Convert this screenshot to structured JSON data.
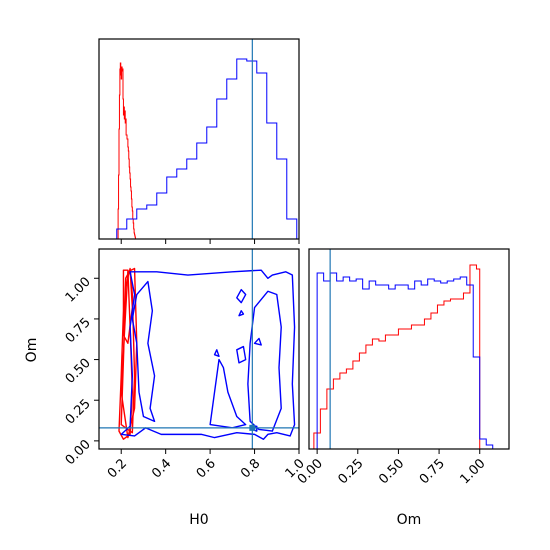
{
  "chart_data": {
    "type": "corner",
    "params": [
      "H0",
      "Om"
    ],
    "truths": {
      "H0": 0.79,
      "Om": 0.08
    },
    "truth_color": "#1f77b4",
    "series_colors": {
      "red": "#ff0000",
      "blue": "#0000ff"
    },
    "axes": {
      "H0": {
        "label": "H0",
        "lim": [
          0.1,
          1.0
        ],
        "ticks": [
          "0.2",
          "0.4",
          "0.6",
          "0.8",
          "1.0"
        ],
        "tick_values": [
          0.2,
          0.4,
          0.6,
          0.8,
          1.0
        ]
      },
      "Om": {
        "label": "Om",
        "lim": [
          -0.05,
          1.18
        ],
        "ticks": [
          "0.00",
          "0.25",
          "0.50",
          "0.75",
          "1.00"
        ],
        "tick_values": [
          0.0,
          0.25,
          0.5,
          0.75,
          1.0
        ]
      }
    },
    "hist_H0": {
      "ylim": [
        0,
        1
      ],
      "red_edges": [
        0.18,
        0.182,
        0.184,
        0.186,
        0.188,
        0.19,
        0.192,
        0.194,
        0.196,
        0.198,
        0.2,
        0.202,
        0.204,
        0.206,
        0.208,
        0.21,
        0.212,
        0.214,
        0.216,
        0.218,
        0.22,
        0.222,
        0.224,
        0.226,
        0.228,
        0.23,
        0.232,
        0.234,
        0.236,
        0.238,
        0.24,
        0.242,
        0.244,
        0.246,
        0.248,
        0.25,
        0.252,
        0.254,
        0.256,
        0.258,
        0.26,
        0.262,
        0.264,
        0.266,
        0.268,
        0.27
      ],
      "red_heights": [
        0,
        0,
        0,
        0.15,
        0.32,
        0.55,
        0.72,
        0.85,
        0.88,
        0.82,
        0.8,
        0.86,
        0.84,
        0.85,
        0.7,
        0.62,
        0.66,
        0.6,
        0.64,
        0.58,
        0.6,
        0.52,
        0.52,
        0.5,
        0.5,
        0.46,
        0.44,
        0.4,
        0.36,
        0.33,
        0.3,
        0.26,
        0.24,
        0.2,
        0.16,
        0.14,
        0.1,
        0.08,
        0.05,
        0.03,
        0.02,
        0.01,
        0,
        0,
        0
      ],
      "blue_edges": [
        0.18,
        0.225,
        0.27,
        0.315,
        0.36,
        0.405,
        0.45,
        0.495,
        0.54,
        0.585,
        0.63,
        0.675,
        0.72,
        0.765,
        0.81,
        0.855,
        0.9,
        0.945,
        0.99
      ],
      "blue_heights": [
        0.05,
        0.1,
        0.15,
        0.17,
        0.23,
        0.31,
        0.35,
        0.4,
        0.48,
        0.56,
        0.7,
        0.8,
        0.9,
        0.89,
        0.83,
        0.58,
        0.4,
        0.1
      ]
    },
    "hist_Om": {
      "ylim": [
        0,
        1
      ],
      "red_edges": [
        -0.02,
        0.02,
        0.06,
        0.1,
        0.14,
        0.18,
        0.22,
        0.26,
        0.3,
        0.34,
        0.38,
        0.42,
        0.46,
        0.5,
        0.54,
        0.58,
        0.62,
        0.66,
        0.7,
        0.74,
        0.78,
        0.82,
        0.86,
        0.9,
        0.94,
        0.98,
        1.0
      ],
      "red_heights": [
        0.08,
        0.2,
        0.3,
        0.35,
        0.38,
        0.4,
        0.44,
        0.48,
        0.52,
        0.55,
        0.54,
        0.57,
        0.57,
        0.6,
        0.6,
        0.62,
        0.62,
        0.65,
        0.68,
        0.72,
        0.74,
        0.75,
        0.75,
        0.78,
        0.92,
        0.9
      ],
      "blue_edges": [
        0.0,
        0.04,
        0.08,
        0.12,
        0.16,
        0.2,
        0.24,
        0.28,
        0.32,
        0.36,
        0.4,
        0.44,
        0.48,
        0.52,
        0.56,
        0.6,
        0.64,
        0.68,
        0.72,
        0.76,
        0.8,
        0.84,
        0.88,
        0.92,
        0.96,
        1.0,
        1.04,
        1.08
      ],
      "blue_heights": [
        0.88,
        0.84,
        0.88,
        0.84,
        0.86,
        0.84,
        0.85,
        0.8,
        0.84,
        0.82,
        0.82,
        0.8,
        0.82,
        0.82,
        0.8,
        0.84,
        0.82,
        0.85,
        0.84,
        0.83,
        0.84,
        0.85,
        0.86,
        0.82,
        0.46,
        0.05,
        0.02
      ]
    },
    "contours_2d": [
      {
        "color": "red",
        "points": [
          [
            0.19,
            0.06
          ],
          [
            0.2,
            0.4
          ],
          [
            0.21,
            0.8
          ],
          [
            0.21,
            1.05
          ],
          [
            0.23,
            1.05
          ],
          [
            0.24,
            0.7
          ],
          [
            0.25,
            0.3
          ],
          [
            0.24,
            0.04
          ],
          [
            0.21,
            0.01
          ],
          [
            0.19,
            0.06
          ]
        ]
      },
      {
        "color": "red",
        "points": [
          [
            0.2,
            0.1
          ],
          [
            0.21,
            0.5
          ],
          [
            0.22,
            0.95
          ],
          [
            0.24,
            1.06
          ],
          [
            0.25,
            0.9
          ],
          [
            0.26,
            0.4
          ],
          [
            0.25,
            0.05
          ],
          [
            0.2,
            0.1
          ]
        ]
      },
      {
        "color": "red",
        "points": [
          [
            0.2,
            0.3
          ],
          [
            0.22,
            0.8
          ],
          [
            0.23,
            1.04
          ],
          [
            0.26,
            1.06
          ],
          [
            0.27,
            0.6
          ],
          [
            0.26,
            0.2
          ],
          [
            0.23,
            0.02
          ],
          [
            0.2,
            0.3
          ]
        ]
      },
      {
        "color": "red",
        "points": [
          [
            0.21,
            0.65
          ],
          [
            0.22,
            1.0
          ],
          [
            0.24,
            1.05
          ],
          [
            0.25,
            0.82
          ],
          [
            0.23,
            0.6
          ],
          [
            0.21,
            0.65
          ]
        ]
      },
      {
        "color": "blue",
        "points": [
          [
            0.2,
            0.04
          ],
          [
            0.24,
            0.09
          ],
          [
            0.25,
            0.4
          ],
          [
            0.24,
            0.7
          ],
          [
            0.26,
            0.9
          ],
          [
            0.24,
            1.04
          ],
          [
            0.36,
            1.04
          ],
          [
            0.5,
            1.02
          ],
          [
            0.6,
            1.03
          ],
          [
            0.7,
            1.04
          ],
          [
            0.83,
            1.05
          ],
          [
            0.86,
            1.0
          ],
          [
            0.88,
            1.02
          ],
          [
            0.94,
            1.04
          ],
          [
            0.97,
            1.02
          ],
          [
            0.98,
            0.7
          ],
          [
            0.97,
            0.35
          ],
          [
            0.98,
            0.1
          ],
          [
            0.96,
            0.03
          ],
          [
            0.9,
            0.05
          ],
          [
            0.86,
            0.04
          ],
          [
            0.84,
            0.01
          ],
          [
            0.8,
            0.04
          ],
          [
            0.72,
            0.05
          ],
          [
            0.62,
            0.02
          ],
          [
            0.56,
            0.04
          ],
          [
            0.38,
            0.04
          ],
          [
            0.31,
            0.08
          ],
          [
            0.26,
            0.03
          ],
          [
            0.2,
            0.04
          ]
        ]
      },
      {
        "color": "blue",
        "points": [
          [
            0.27,
            0.9
          ],
          [
            0.32,
            0.98
          ],
          [
            0.34,
            0.8
          ],
          [
            0.32,
            0.6
          ],
          [
            0.35,
            0.4
          ],
          [
            0.33,
            0.2
          ],
          [
            0.35,
            0.12
          ],
          [
            0.3,
            0.15
          ],
          [
            0.28,
            0.3
          ],
          [
            0.27,
            0.6
          ],
          [
            0.25,
            0.75
          ],
          [
            0.27,
            0.9
          ]
        ]
      },
      {
        "color": "blue",
        "points": [
          [
            0.6,
            0.1
          ],
          [
            0.62,
            0.3
          ],
          [
            0.64,
            0.5
          ],
          [
            0.66,
            0.45
          ],
          [
            0.68,
            0.3
          ],
          [
            0.72,
            0.15
          ],
          [
            0.76,
            0.1
          ],
          [
            0.7,
            0.08
          ],
          [
            0.6,
            0.1
          ]
        ]
      },
      {
        "color": "blue",
        "points": [
          [
            0.78,
            0.12
          ],
          [
            0.77,
            0.35
          ],
          [
            0.78,
            0.6
          ],
          [
            0.8,
            0.82
          ],
          [
            0.86,
            0.92
          ],
          [
            0.9,
            0.9
          ],
          [
            0.92,
            0.7
          ],
          [
            0.91,
            0.45
          ],
          [
            0.92,
            0.2
          ],
          [
            0.88,
            0.06
          ],
          [
            0.82,
            0.07
          ],
          [
            0.78,
            0.12
          ]
        ]
      },
      {
        "color": "blue",
        "points": [
          [
            0.72,
            0.88
          ],
          [
            0.74,
            0.93
          ],
          [
            0.76,
            0.9
          ],
          [
            0.74,
            0.85
          ],
          [
            0.72,
            0.88
          ]
        ]
      },
      {
        "color": "blue",
        "points": [
          [
            0.72,
            0.56
          ],
          [
            0.75,
            0.58
          ],
          [
            0.76,
            0.5
          ],
          [
            0.73,
            0.48
          ],
          [
            0.72,
            0.56
          ]
        ]
      },
      {
        "color": "blue",
        "points": [
          [
            0.8,
            0.6
          ],
          [
            0.82,
            0.63
          ],
          [
            0.83,
            0.59
          ],
          [
            0.8,
            0.6
          ]
        ]
      },
      {
        "color": "blue",
        "points": [
          [
            0.62,
            0.53
          ],
          [
            0.63,
            0.56
          ],
          [
            0.64,
            0.52
          ],
          [
            0.62,
            0.53
          ]
        ]
      },
      {
        "color": "blue",
        "points": [
          [
            0.73,
            0.77
          ],
          [
            0.74,
            0.8
          ],
          [
            0.75,
            0.78
          ],
          [
            0.73,
            0.77
          ]
        ]
      },
      {
        "color": "blue",
        "points": [
          [
            0.79,
            0.07
          ],
          [
            0.81,
            0.09
          ],
          [
            0.81,
            0.06
          ],
          [
            0.79,
            0.07
          ]
        ]
      }
    ]
  }
}
